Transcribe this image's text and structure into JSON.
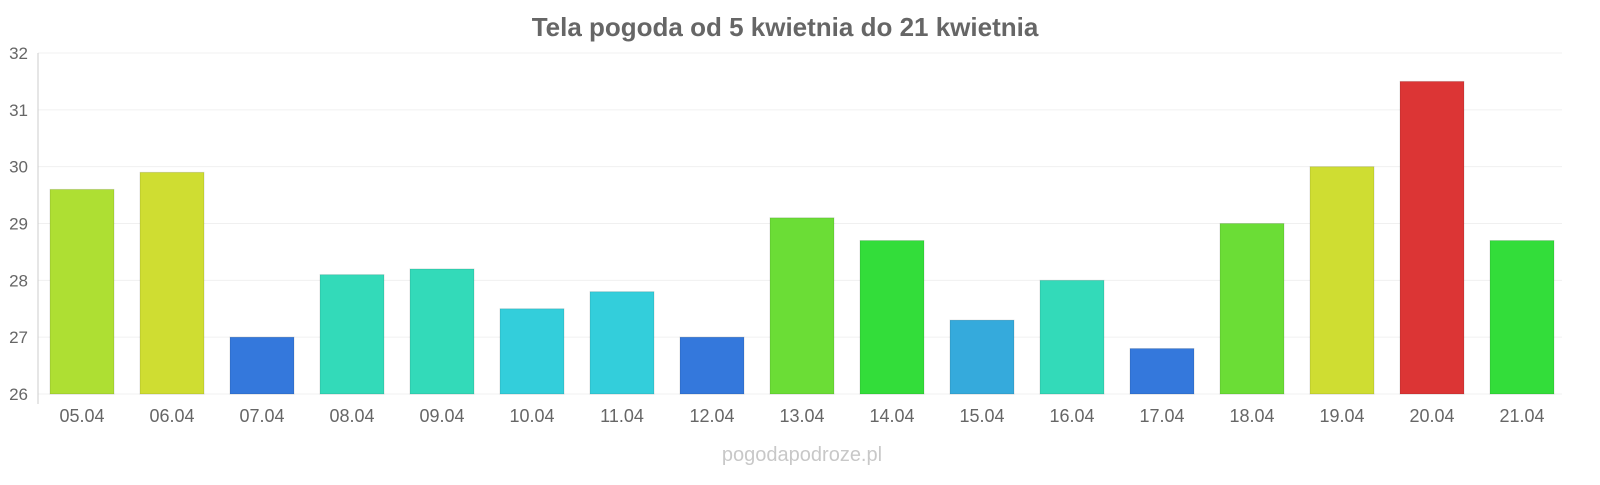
{
  "chart_data": {
    "type": "bar",
    "title": "Tela pogoda od 5 kwietnia do 21 kwietnia",
    "xlabel": "",
    "ylabel": "",
    "ylim": [
      26,
      32
    ],
    "yticks": [
      "26",
      "27",
      "28",
      "29",
      "30",
      "31",
      "32"
    ],
    "grid": true,
    "categories": [
      "05.04",
      "06.04",
      "07.04",
      "08.04",
      "09.04",
      "10.04",
      "11.04",
      "12.04",
      "13.04",
      "14.04",
      "15.04",
      "16.04",
      "17.04",
      "18.04",
      "19.04",
      "20.04",
      "21.04"
    ],
    "values": [
      29.6,
      29.9,
      27.0,
      28.1,
      28.2,
      27.5,
      27.8,
      27.0,
      29.1,
      28.7,
      27.3,
      28.0,
      26.8,
      29.0,
      30.0,
      31.5,
      28.7
    ],
    "colors": [
      "#aedf33",
      "#cfdd32",
      "#3478dc",
      "#33dab9",
      "#33dab9",
      "#33cedb",
      "#33cedb",
      "#3478dc",
      "#6bdd36",
      "#33dd3a",
      "#35aadc",
      "#33dab9",
      "#3478dc",
      "#6bdd36",
      "#cfdd32",
      "#dc3535",
      "#33dd3a"
    ],
    "watermark": "pogodapodroze.pl"
  }
}
